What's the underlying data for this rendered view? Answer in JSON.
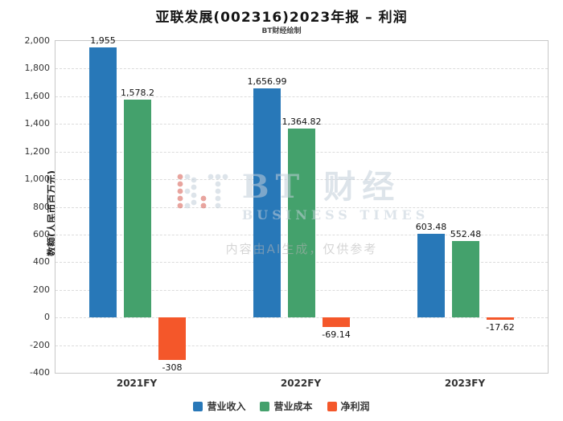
{
  "page": {
    "title": "亚联发展(002316)2023年报 – 利润",
    "subtitle": "BT财经绘制"
  },
  "chart_data": {
    "type": "bar",
    "title": "亚联发展(002316)2023年报 – 利润",
    "subtitle": "BT财经绘制",
    "categories": [
      "2021FY",
      "2022FY",
      "2023FY"
    ],
    "series": [
      {
        "name": "营业收入",
        "color": "#2878b8",
        "values": [
          1955,
          1656.99,
          603.48
        ],
        "labels": [
          "1,955",
          "1,656.99",
          "603.48"
        ]
      },
      {
        "name": "营业成本",
        "color": "#44a16c",
        "values": [
          1578.2,
          1364.82,
          552.48
        ],
        "labels": [
          "1,578.2",
          "1,364.82",
          "552.48"
        ]
      },
      {
        "name": "净利润",
        "color": "#f4572a",
        "values": [
          -308,
          -69.14,
          -17.62
        ],
        "labels": [
          "-308",
          "-69.14",
          "-17.62"
        ]
      }
    ],
    "xlabel": "",
    "ylabel": "数额(人民币百万元)",
    "ylim": [
      -400,
      2000
    ],
    "ytick_step": 200,
    "ytick_labels": [
      "2,000",
      "1,800",
      "1,600",
      "1,400",
      "1,200",
      "1,000",
      "800",
      "600",
      "400",
      "200",
      "0",
      "-200",
      "-400"
    ],
    "grid": true,
    "legend_position": "bottom"
  },
  "watermark": {
    "brand": "BT 财经",
    "brand_sub": "BUSINESS TIMES",
    "notice": "内容由AI生成，仅供参考"
  }
}
